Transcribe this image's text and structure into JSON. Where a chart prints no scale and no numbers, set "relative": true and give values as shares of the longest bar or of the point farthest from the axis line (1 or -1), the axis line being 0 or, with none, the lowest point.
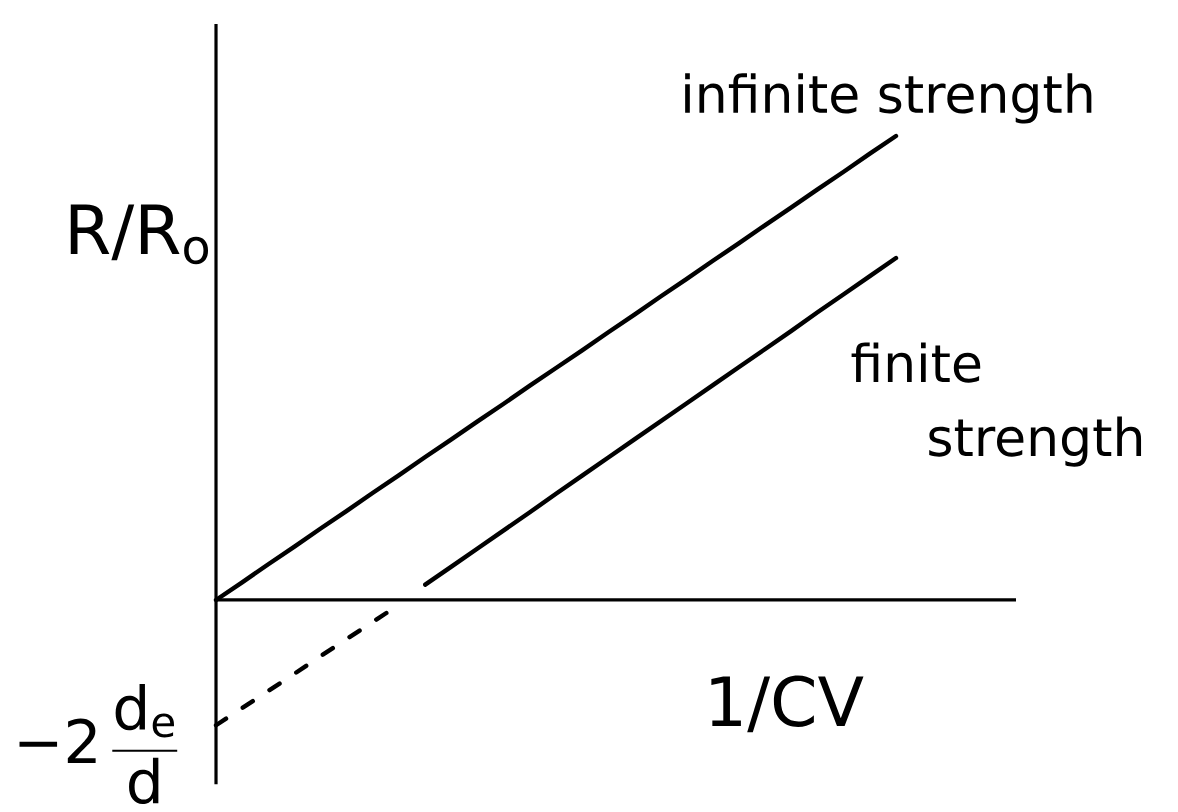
{
  "chart_data": {
    "type": "line",
    "relative": true,
    "xlabel": "1/CV",
    "ylabel": "R/R$_{o}$",
    "line_style": "solid",
    "categories": [
      null,
      null,
      null,
      null,
      null,
      null,
      null,
      null,
      null,
      null,
      null,
      null,
      null,
      null,
      null,
      null,
      null,
      null,
      null,
      null,
      null,
      null,
      null,
      null,
      null,
      null,
      null
    ],
    "series": [
      {
        "name": "infinite strength",
        "color": "#000000",
        "values": [
          0,
          0.038,
          0.077,
          0.115,
          0.154,
          0.192,
          0.231,
          0.269,
          0.308,
          0.346,
          0.385,
          0.423,
          0.462,
          0.5,
          0.538,
          0.577,
          0.615,
          0.654,
          0.692,
          0.731,
          0.769,
          0.808,
          0.846,
          0.885,
          0.923,
          0.962,
          1
        ]
      },
      {
        "name": "finite strength",
        "color": "#000000",
        "values": [
          null,
          null,
          null,
          null,
          null,
          null,
          null,
          null,
          0.033,
          0.072,
          0.111,
          0.15,
          0.189,
          0.229,
          0.268,
          0.307,
          0.346,
          0.385,
          0.424,
          0.463,
          0.502,
          0.541,
          0.58,
          0.62,
          0.659,
          0.698,
          0.737
        ]
      },
      {
        "color": "#000000",
        "line_style": "dashed",
        "values": [
          -0.27,
          -0.233,
          -0.196,
          -0.159,
          -0.121,
          -0.084,
          -0.047,
          -0.01,
          null,
          null,
          null,
          null,
          null,
          null,
          null,
          null,
          null,
          null,
          null,
          null,
          null,
          null,
          null,
          null,
          null,
          null,
          null
        ]
      }
    ],
    "annotations": [
      "\\text{−2}\\,\\frac{\\text{d}_{\\text{e}}}{\\text{d}}"
    ]
  }
}
